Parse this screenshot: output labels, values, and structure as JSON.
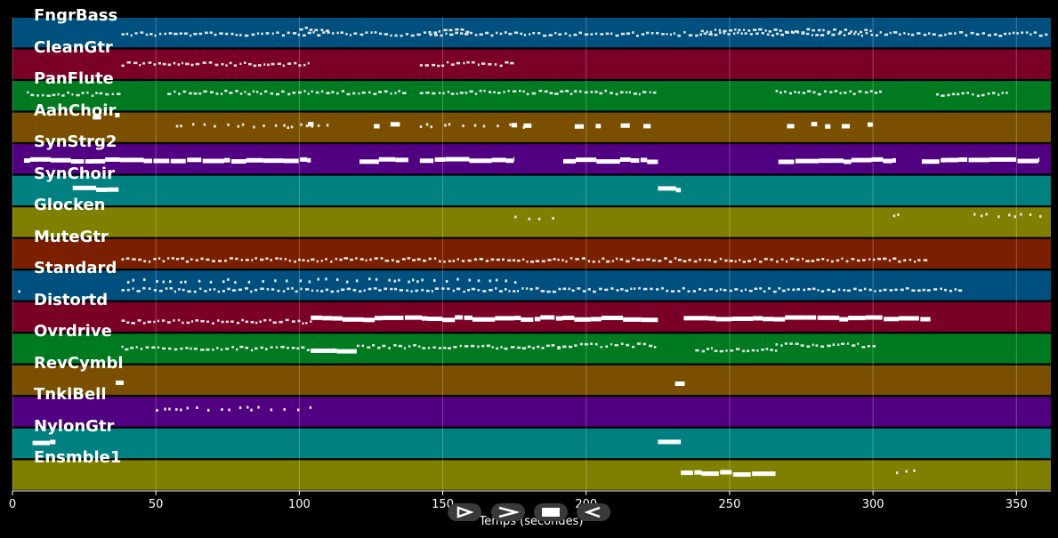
{
  "chart_data": {
    "type": "piano-roll",
    "xlabel": "Temps (secondes)",
    "xlim": [
      0,
      362
    ],
    "xticks": [
      0,
      50,
      100,
      150,
      200,
      250,
      300,
      350
    ],
    "grid": true,
    "tracks": [
      {
        "name": "FngrBass",
        "color": "#00507f",
        "notes": [
          [
            38,
            360,
            0.55,
            "dash"
          ],
          [
            100,
            110,
            0.4,
            "dash"
          ],
          [
            145,
            160,
            0.45,
            "dash"
          ],
          [
            240,
            300,
            0.45,
            "dash"
          ]
        ]
      },
      {
        "name": "CleanGtr",
        "color": "#7a0025",
        "notes": [
          [
            38,
            104,
            0.5,
            "dash"
          ],
          [
            142,
            175,
            0.5,
            "dash"
          ]
        ]
      },
      {
        "name": "PanFlute",
        "color": "#007a20",
        "notes": [
          [
            5,
            37,
            0.45,
            "dash"
          ],
          [
            54,
            138,
            0.4,
            "dash"
          ],
          [
            142,
            225,
            0.4,
            "dash"
          ],
          [
            266,
            303,
            0.4,
            "dash"
          ],
          [
            322,
            348,
            0.45,
            "dash"
          ]
        ]
      },
      {
        "name": "AahChoir",
        "color": "#7a5000",
        "notes": [
          [
            28,
            37,
            0.15,
            "block"
          ],
          [
            57,
            110,
            0.45,
            "dots"
          ],
          [
            103,
            110,
            0.45,
            "block"
          ],
          [
            126,
            135,
            0.45,
            "block"
          ],
          [
            142,
            180,
            0.45,
            "dots"
          ],
          [
            174,
            180,
            0.45,
            "block"
          ],
          [
            196,
            225,
            0.45,
            "block"
          ],
          [
            270,
            304,
            0.45,
            "block"
          ]
        ]
      },
      {
        "name": "SynStrg2",
        "color": "#500080",
        "notes": [
          [
            4,
            104,
            0.55,
            "bar"
          ],
          [
            121,
            138,
            0.55,
            "bar"
          ],
          [
            142,
            175,
            0.52,
            "bar"
          ],
          [
            192,
            225,
            0.55,
            "bar"
          ],
          [
            267,
            308,
            0.55,
            "bar"
          ],
          [
            317,
            358,
            0.55,
            "bar"
          ]
        ]
      },
      {
        "name": "SynChoir",
        "color": "#008080",
        "notes": [
          [
            21,
            37,
            0.45,
            "bar"
          ],
          [
            225,
            233,
            0.45,
            "bar"
          ]
        ]
      },
      {
        "name": "Glocken",
        "color": "#808000",
        "notes": [
          [
            175,
            190,
            0.35,
            "dots"
          ],
          [
            307,
            310,
            0.3,
            "dots"
          ],
          [
            335,
            358,
            0.3,
            "dots"
          ]
        ]
      },
      {
        "name": "MuteGtr",
        "color": "#7a2000",
        "notes": [
          [
            38,
            318,
            0.7,
            "dash"
          ]
        ]
      },
      {
        "name": "Standard",
        "color": "#00507f",
        "notes": [
          [
            2,
            5,
            0.65,
            "dots"
          ],
          [
            38,
            330,
            0.65,
            "dash"
          ],
          [
            40,
            175,
            0.35,
            "dots"
          ]
        ]
      },
      {
        "name": "Distortd",
        "color": "#7a0025",
        "notes": [
          [
            38,
            104,
            0.65,
            "dash"
          ],
          [
            104,
            225,
            0.55,
            "bar"
          ],
          [
            234,
            320,
            0.55,
            "bar"
          ]
        ]
      },
      {
        "name": "Ovrdrive",
        "color": "#007a20",
        "notes": [
          [
            38,
            104,
            0.5,
            "dash"
          ],
          [
            104,
            120,
            0.6,
            "bar"
          ],
          [
            120,
            190,
            0.45,
            "dash"
          ],
          [
            190,
            225,
            0.4,
            "dash"
          ],
          [
            238,
            266,
            0.55,
            "dash"
          ],
          [
            266,
            300,
            0.4,
            "dash"
          ]
        ]
      },
      {
        "name": "RevCymbl",
        "color": "#7a5000",
        "notes": [
          [
            36,
            38,
            0.6,
            "block"
          ],
          [
            231,
            234,
            0.65,
            "block"
          ]
        ]
      },
      {
        "name": "TnklBell",
        "color": "#500080",
        "notes": [
          [
            50,
            104,
            0.4,
            "dots"
          ]
        ]
      },
      {
        "name": "NylonGtr",
        "color": "#008080",
        "notes": [
          [
            7,
            15,
            0.45,
            "bar"
          ],
          [
            225,
            233,
            0.45,
            "bar"
          ]
        ]
      },
      {
        "name": "Ensmble1",
        "color": "#808000",
        "notes": [
          [
            233,
            266,
            0.45,
            "bar"
          ],
          [
            308,
            316,
            0.4,
            "dots"
          ]
        ]
      }
    ]
  },
  "controls": [
    {
      "name": "play-button",
      "icon": "play-outline-icon"
    },
    {
      "name": "fast-forward-button",
      "icon": "fast-forward-icon"
    },
    {
      "name": "stop-button",
      "icon": "stop-icon"
    },
    {
      "name": "rewind-button",
      "icon": "rewind-icon"
    }
  ]
}
